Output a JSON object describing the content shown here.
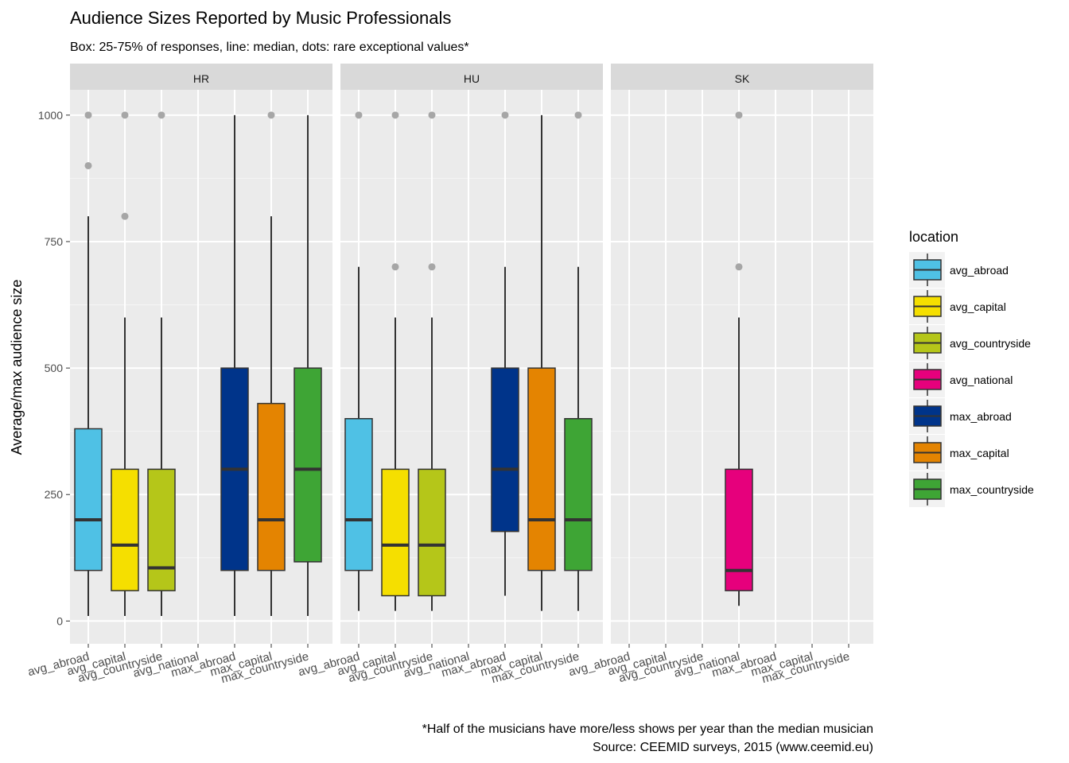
{
  "chart_data": {
    "type": "boxplot",
    "title": "Audience Sizes Reported  by Music Professionals",
    "subtitle": "Box: 25-75% of responses, line: median, dots: rare exceptional values*",
    "caption_lines": [
      "*Half of the musicians have more/less shows per year than the median musician",
      "Source: CEEMID surveys, 2015 (www.ceemid.eu)"
    ],
    "ylabel": "Average/max audience size",
    "ylim": [
      -45,
      1050
    ],
    "yticks": [
      0,
      250,
      500,
      750,
      1000
    ],
    "ytick_labels": [
      "0",
      "250",
      "500",
      "750",
      "1000"
    ],
    "ygrid_minor": [
      125,
      375,
      625,
      875
    ],
    "grid": true,
    "categories": [
      "avg_abroad",
      "avg_capital",
      "avg_countryside",
      "avg_national",
      "max_abroad",
      "max_capital",
      "max_countryside"
    ],
    "colors": {
      "avg_abroad": "#4FC1E5",
      "avg_capital": "#F5DF00",
      "avg_countryside": "#B5C619",
      "avg_national": "#E6007C",
      "max_abroad": "#00348A",
      "max_capital": "#E48401",
      "max_countryside": "#3EA535"
    },
    "legend": {
      "title": "location",
      "position": "right",
      "items": [
        "avg_abroad",
        "avg_capital",
        "avg_countryside",
        "avg_national",
        "max_abroad",
        "max_capital",
        "max_countryside"
      ]
    },
    "panels": [
      {
        "name": "HR",
        "boxes": [
          {
            "category": "avg_abroad",
            "whisker_low": 10,
            "q1": 100,
            "median": 200,
            "q3": 380,
            "whisker_high": 800,
            "outliers": [
              900,
              1000
            ]
          },
          {
            "category": "avg_capital",
            "whisker_low": 10,
            "q1": 60,
            "median": 150,
            "q3": 300,
            "whisker_high": 600,
            "outliers": [
              800,
              1000
            ]
          },
          {
            "category": "avg_countryside",
            "whisker_low": 10,
            "q1": 60,
            "median": 105,
            "q3": 300,
            "whisker_high": 600,
            "outliers": [
              1000
            ]
          },
          {
            "category": "max_abroad",
            "whisker_low": 10,
            "q1": 100,
            "median": 300,
            "q3": 500,
            "whisker_high": 1000,
            "outliers": []
          },
          {
            "category": "max_capital",
            "whisker_low": 10,
            "q1": 100,
            "median": 200,
            "q3": 430,
            "whisker_high": 800,
            "outliers": [
              1000
            ]
          },
          {
            "category": "max_countryside",
            "whisker_low": 10,
            "q1": 117,
            "median": 300,
            "q3": 500,
            "whisker_high": 1000,
            "outliers": []
          }
        ]
      },
      {
        "name": "HU",
        "boxes": [
          {
            "category": "avg_abroad",
            "whisker_low": 20,
            "q1": 100,
            "median": 200,
            "q3": 400,
            "whisker_high": 700,
            "outliers": [
              1000
            ]
          },
          {
            "category": "avg_capital",
            "whisker_low": 20,
            "q1": 50,
            "median": 150,
            "q3": 300,
            "whisker_high": 600,
            "outliers": [
              700,
              1000
            ]
          },
          {
            "category": "avg_countryside",
            "whisker_low": 20,
            "q1": 50,
            "median": 150,
            "q3": 300,
            "whisker_high": 600,
            "outliers": [
              700,
              1000
            ]
          },
          {
            "category": "max_abroad",
            "whisker_low": 50,
            "q1": 177,
            "median": 300,
            "q3": 500,
            "whisker_high": 700,
            "outliers": [
              1000
            ]
          },
          {
            "category": "max_capital",
            "whisker_low": 20,
            "q1": 100,
            "median": 200,
            "q3": 500,
            "whisker_high": 1000,
            "outliers": []
          },
          {
            "category": "max_countryside",
            "whisker_low": 20,
            "q1": 100,
            "median": 200,
            "q3": 400,
            "whisker_high": 700,
            "outliers": [
              1000
            ]
          }
        ]
      },
      {
        "name": "SK",
        "boxes": [
          {
            "category": "avg_national",
            "whisker_low": 30,
            "q1": 60,
            "median": 100,
            "q3": 300,
            "whisker_high": 600,
            "outliers": [
              700,
              1000
            ]
          }
        ]
      }
    ]
  }
}
